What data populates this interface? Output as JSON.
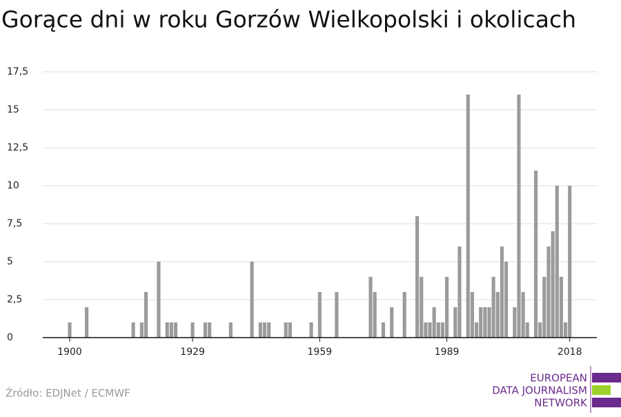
{
  "chart_data": {
    "type": "bar",
    "title": "Gorące dni w roku Gorzów Wielkopolski i okolicach",
    "x": [
      1900,
      1904,
      1915,
      1917,
      1918,
      1921,
      1923,
      1924,
      1925,
      1929,
      1932,
      1933,
      1938,
      1943,
      1945,
      1946,
      1947,
      1951,
      1952,
      1957,
      1959,
      1963,
      1971,
      1972,
      1974,
      1976,
      1979,
      1982,
      1983,
      1984,
      1985,
      1986,
      1987,
      1988,
      1989,
      1991,
      1992,
      1994,
      1995,
      1996,
      1997,
      1998,
      1999,
      2000,
      2001,
      2002,
      2003,
      2005,
      2006,
      2007,
      2008,
      2010,
      2011,
      2012,
      2013,
      2014,
      2015,
      2016,
      2017,
      2018
    ],
    "values": [
      1,
      2,
      1,
      1,
      3,
      5,
      1,
      1,
      1,
      1,
      1,
      1,
      1,
      5,
      1,
      1,
      1,
      1,
      1,
      1,
      3,
      3,
      4,
      3,
      1,
      2,
      3,
      8,
      4,
      1,
      1,
      2,
      1,
      1,
      4,
      2,
      6,
      16,
      3,
      1,
      2,
      2,
      2,
      4,
      3,
      6,
      5,
      2,
      16,
      3,
      1,
      11,
      1,
      4,
      6,
      7,
      10,
      4,
      1,
      10
    ],
    "color": "#9b9b9b",
    "xlim": [
      1893.65,
      2024.4
    ],
    "xticks": [
      1900,
      1929,
      1959,
      1989,
      2018
    ],
    "ylim": [
      0,
      17.5
    ],
    "yticks": [
      0,
      {
        "value": 2.5,
        "label": "2,5"
      },
      5,
      {
        "value": 7.5,
        "label": "7,5"
      },
      10,
      {
        "value": 12.5,
        "label": "12,5"
      },
      15,
      {
        "value": 17.5,
        "label": "17,5"
      }
    ],
    "grid": true,
    "source": "Źródło: EDJNet / ECMWF"
  },
  "logo": {
    "lines": [
      "EUROPEAN",
      "DATA JOURNALISM",
      "NETWORK"
    ]
  }
}
